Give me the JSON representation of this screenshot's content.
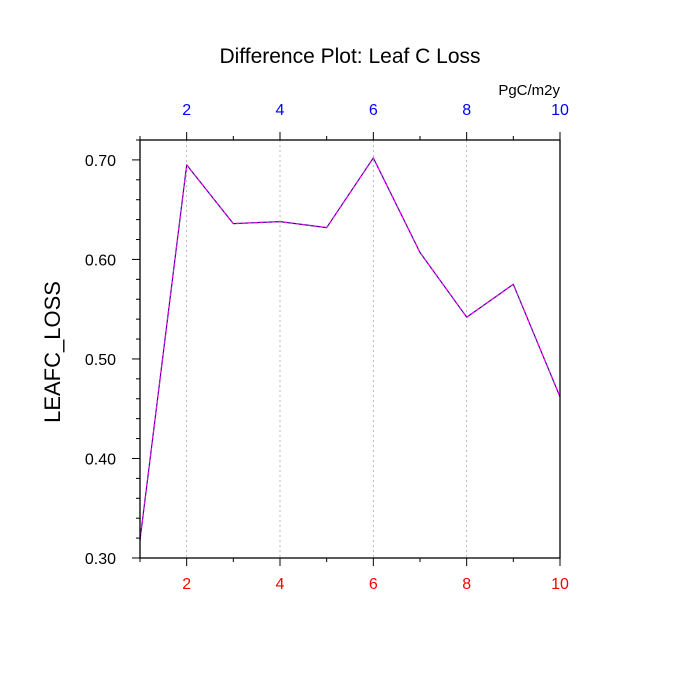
{
  "chart_data": {
    "type": "line",
    "title": "Difference Plot: Leaf C Loss",
    "units_label": "PgC/m2y",
    "xlabel": "",
    "ylabel": "LEAFC_LOSS",
    "xlim": [
      1,
      10
    ],
    "ylim": [
      0.3,
      0.72
    ],
    "x_ticks": [
      2,
      4,
      6,
      8,
      10
    ],
    "x_tick_labels": [
      "2",
      "4",
      "6",
      "8",
      "10"
    ],
    "x_minor_ticks": [
      1,
      3,
      5,
      7,
      9
    ],
    "y_ticks": [
      0.3,
      0.4,
      0.5,
      0.6,
      0.7
    ],
    "y_tick_labels": [
      "0.30",
      "0.40",
      "0.50",
      "0.60",
      "0.70"
    ],
    "y_minor_step": 0.02,
    "x_grid": "dashed vertical lines at major x ticks",
    "series": [
      {
        "x": [
          1,
          2,
          3,
          4,
          5,
          6,
          7,
          8,
          9,
          10
        ],
        "values": [
          0.318,
          0.695,
          0.636,
          0.638,
          0.632,
          0.702,
          0.607,
          0.542,
          0.575,
          0.462
        ],
        "color": "#3b0a8a",
        "dash_color": "#ff00ff"
      }
    ],
    "colors": {
      "top_axis_ticks": "#0000ff",
      "bottom_axis_ticks": "#ff0000",
      "left_axis_ticks": "#000000",
      "grid": "#aaaaaa"
    }
  }
}
